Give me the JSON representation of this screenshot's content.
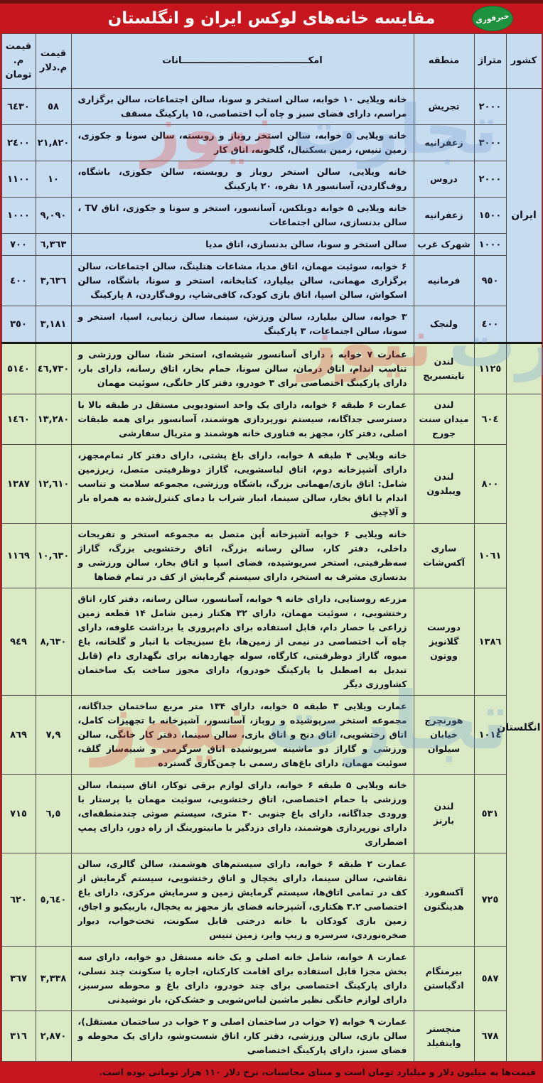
{
  "page": {
    "title": "مقایسه خانه‌های لوکس ایران و انگلستان",
    "logo_text": "خبرفوری",
    "footer_note": "قیمت‌ها به میلیون دلار و میلیارد تومان است و مبنای محاسبات، نرخ دلار ۱۱۰ هزار تومانی بوده است.",
    "watermark": {
      "word1": "تجارت",
      "word2": "نیوز"
    },
    "colors": {
      "background_red": "#c8161f",
      "top_strip_maroon": "#6e1013",
      "iran_row_blue": "#c8dcef",
      "england_row_green": "#d9eac5",
      "logo_green": "#1f9240",
      "title_text": "#ffffff",
      "cell_border": "#4c4c4c"
    }
  },
  "table": {
    "headers": {
      "country": "کشور",
      "area": "متراژ",
      "region": "منطقه",
      "amenities": "امکــــــــــــــــــــــــــــــــــــــــانات",
      "price_usd": "قیمت\nم.دلار",
      "price_toman": "قیمت\nم. تومان"
    }
  },
  "sections": [
    {
      "country": "ایران",
      "country_label_row": 0,
      "rows": [
        {
          "area": "٢٠٠٠",
          "region": "تجریش",
          "amenities": "خانه ویلایی ۱۰ خوابه، سالن استخر و سونا، سالن اجتماعات، سالن برگزاری مراسم، دارای فضای سبز و چاه آب اختصاصی، ۱۵ پارکینگ مسقف",
          "usd": "٥٨",
          "toman": "٦٤٣٠"
        },
        {
          "area": "٣٠٠٠",
          "region": "زعفرانیه",
          "amenities": "خانه ویلایی ۵ خوابه، سالن استخر روباز و روبسته، سالن سونا و جکوزی، زمین تنیس، زمین بسکتبال، گلخونه، اتاق کار",
          "usd": "٢١,٨٢٠",
          "toman": "٢٤٠٠"
        },
        {
          "area": "٢٠٠٠",
          "region": "دروس",
          "amenities": "خانه ویلایی، سالن استخر روباز و روبسته، سالن جکوزی، باشگاه، روف‌گاردن، آسانسور ۱۸ نفره، ۲۰ پارکینگ",
          "usd": "١٠",
          "toman": "١١٠٠"
        },
        {
          "area": "١٥٠٠",
          "region": "زعفرانیه",
          "amenities": "خانه ویلایی ۵ خوابه دوبلکس، آسانسور، استخر و سونا و جکوزی، اتاق TV ، سالن بدنسازی، سالن اجتماعات",
          "usd": "٩,٠٩٠",
          "toman": "١٠٠٠"
        },
        {
          "area": "١٠٠٠",
          "region": "شهرک غرب",
          "amenities": "سالن استخر و سونا، سالن بدنسازی، اتاق مدیا",
          "usd": "٦,٣٦٣",
          "toman": "٧٠٠"
        },
        {
          "area": "٩٥٠",
          "region": "فرمانیه",
          "amenities": "۶ خوابه، سوئیت مهمان، اتاق مدیا، مشاعات هتلینگ، سالن اجتماعات، سالن برگزاری مهمانی، سالن بیلیارد، کتابخانه، استخر و سونا، باشگاه، سالن اسکواش، سالن اسپا، اتاق بازی کودک، کافی‌شاپ، روف‌گاردن، ۸ پارکینگ",
          "usd": "٣,٦٣٦",
          "toman": "٤٠٠"
        },
        {
          "area": "٤٠٠",
          "region": "ولنجک",
          "amenities": "۳ خوابه، سالن بیلیارد، سالن ورزش، سینما، سالن زیبایی، اسپا، استخر و سونا، سالن اجتماعات، ۳ پارکینگ",
          "usd": "٣,١٨١",
          "toman": "٣٥٠"
        }
      ]
    },
    {
      "country": "انگلستان",
      "country_label_row": 1,
      "rows": [
        {
          "area": "١١٢٥",
          "region": "لندن\nنایتسبریج",
          "amenities": "عمارت ۷ خوابه ، دارای آسانسور شیشه‌ای، استخر شنا، سالن ورزشی و تناسب اندام، اتاق درمان، سالن سونا، حمام بخار، اتاق رسانه، دارای بار، دارای پارکینگ اختصاصی برای ۳ خودرو، دفتر کار خانگی، سوئیت مهمان",
          "usd": "٤٦,٧٣٠",
          "toman": "٥١٤٠"
        },
        {
          "area": "٦٠٤",
          "region": "لندن\nمیدان سنت جورج",
          "amenities": "عمارت ۶ طبقه ۶ خوابه، دارای یک واحد استودیویی مستقل در طبقه بالا با دسترسی جداگانه، سیستم نورپردازی هوشمند، آسانسور برای همه طبقات اصلی، دفتر کار، مجهز به فناوری خانه هوشمند و متریال سفارشی",
          "usd": "١٣,٢٨٠",
          "toman": "١٤٦٠"
        },
        {
          "area": "٨٠٠",
          "region": "لندن\nویبلدون",
          "amenities": "خانه ویلایی ۴ طبقه ۸ خوابه، دارای باغ پشتی، دارای دفتر کار تمام‌مجهز، دارای آشپزخانه دوم، اتاق لباسشویی، گاراژ دوظرفیتی متصل، زیرزمین شامل: اتاق بازی/مهمانی بزرگ، باشگاه ورزشی، مجموعه سلامت و تناسب اندام با اتاق بخار، سالن سینما، انبار شراب با دمای کنترل‌شده به همراه بار و آلاچیق",
          "usd": "١٢,٦١٠",
          "toman": "١٣٨٧"
        },
        {
          "area": "١٠٦١",
          "region": "ساری\nآکس‌شات",
          "amenities": "خانه ویلایی ۶ خوابه آشپزخانه اُپن متصل به مجموعه استخر و تفریحات داخلی، دفتر کار، سالن رسانه بزرگ، اتاق رختشویی بزرگ، گاراژ سه‌ظرفیتی، استخر سرپوشیده، فضای اسپا و اتاق بخار، سالن ورزشی و بدنسازی مشرف به استخر، دارای سیستم گرمایش از کف در تمام فضاها",
          "usd": "١٠,٦٣٠",
          "toman": "١١٦٩"
        },
        {
          "area": "١٣٨٦",
          "region": "دورست\nگلانویز ووتون",
          "amenities": "مزرعه روستایی، دارای خانه ۹ خوابه، آسانسور، سالن رسانه، دفتر کار، اتاق رختشویی، ، سوئیت مهمان، دارای ۳۲ هکتار زمین شامل ۱۴ قطعه زمین زراعی با حصار دام، قابل استفاده برای دام‌پروری یا برداشت علوفه، دارای چاه آب اختصاصی در نیمی از زمین‌ها، باغ سبزیجات با انبار و گلخانه، باغ میوه، گاراژ دوظرفیتی، کارگاه، سوله چهاردهانه برای نگهداری دام (قابل تبدیل به اصطبل یا پارکینگ خودرو)، دارای مجوز ساخت یک ساختمان کشاورزی دیگر",
          "usd": "٨,٦٣٠",
          "toman": "٩٤٩"
        },
        {
          "area": "١٠١٤",
          "region": "هورنچرچ\nخیابان سیلوان",
          "amenities": "عمارت ویلایی ۳ طبقه ۵ خوابه، دارای ۱۳۴ متر مربع ساختمان جداگانه، مجموعه استخر سرپوشیده و روباز، آسانسور، آشپزخانه با تجهیزات کامل، اتاق رختشویی، اتاق دنج و اتاق بازی، سالن سینما، دفتر کار خانگی، سالن ورزشی و گاراژ دو ماشینه سرپوشیده اتاق سرگرمی و شبیه‌ساز گلف، سوئیت مهمان، دارای باغ‌های رسمی با چمن‌کاری گسترده",
          "usd": "٧,٩",
          "toman": "٨٦٩"
        },
        {
          "area": "٥٣١",
          "region": "لندن\nبارنز",
          "amenities": "خانه ویلایی ۵ طبقه ۶ خوابه، دارای لوازم برقی توکار، اتاق سینما، سالن ورزشی با حمام اختصاصی، اتاق رختشویی، سوئیت مهمان یا پرستار با ورودی جداگانه، دارای باغ جنوبی ۳۰ متری، سیستم صوتی چندمنطقه‌ای، دارای نورپردازی هوشمند، دارای دزدگیر با مانیتورینگ از راه دور، دارای پمپ اضطراری",
          "usd": "٦,٥",
          "toman": "٧١٥"
        },
        {
          "area": "٧٢٥",
          "region": "آکسفورد\nهدینگتون",
          "amenities": "عمارت ۲ طبقه ۶ خوابه، دارای سیستم‌های هوشمند، سالن گالری، سالن نقاشی، سالن سینما، دارای یخچال و اتاق رختشویی، سیستم گرمایش از کف در تمامی اتاق‌ها، سیستم گرمایش زمین و سرمایش مرکزی، دارای باغ اختصاصی ۳.۲ هکتاری، آشپزخانه فضای باز مجهز به یخچال، باربیکیو و اجاق، زمین بازی کودکان با خانه درختی قابل سکونت، تخت‌خواب، دیوار صخره‌نوردی، سرسره و زیپ وایر، زمین تنیس",
          "usd": "٥,٦٤٠",
          "toman": "٦٢٠"
        },
        {
          "area": "٥٨٧",
          "region": "بیرمنگام\nادگباستن",
          "amenities": "عمارت ۸ خوابه، شامل خانه اصلی و یک خانه مستقل دو خوابه، دارای سه بخش مجزا قابل استفاده برای اقامت کارکنان، اجاره یا سکونت چند نسلی، دارای پارکینگ اختصاصی برای چند خودرو، دارای باغ و محوطه سرسبز، دارای لوازم خانگی نظیر ماشین لباس‌شویی و خشک‌کن، بار نوشیدنی",
          "usd": "٣,٣٣٨",
          "toman": "٣٦٧"
        },
        {
          "area": "٦٧٨",
          "region": "منچستر\nوایتفیلد",
          "amenities": "عمارت ۹ خوابه (۷ خواب در ساختمان اصلی و ۲ خواب در ساختمان مستقل)، سالن بازی، سالن ورزشی، دفتر کار، اتاق شست‌وشو، دارای یک محوطه و فضای سبز، دارای پارکینگ اختصاصی",
          "usd": "٢,٨٧٠",
          "toman": "٣١٦"
        }
      ]
    }
  ]
}
